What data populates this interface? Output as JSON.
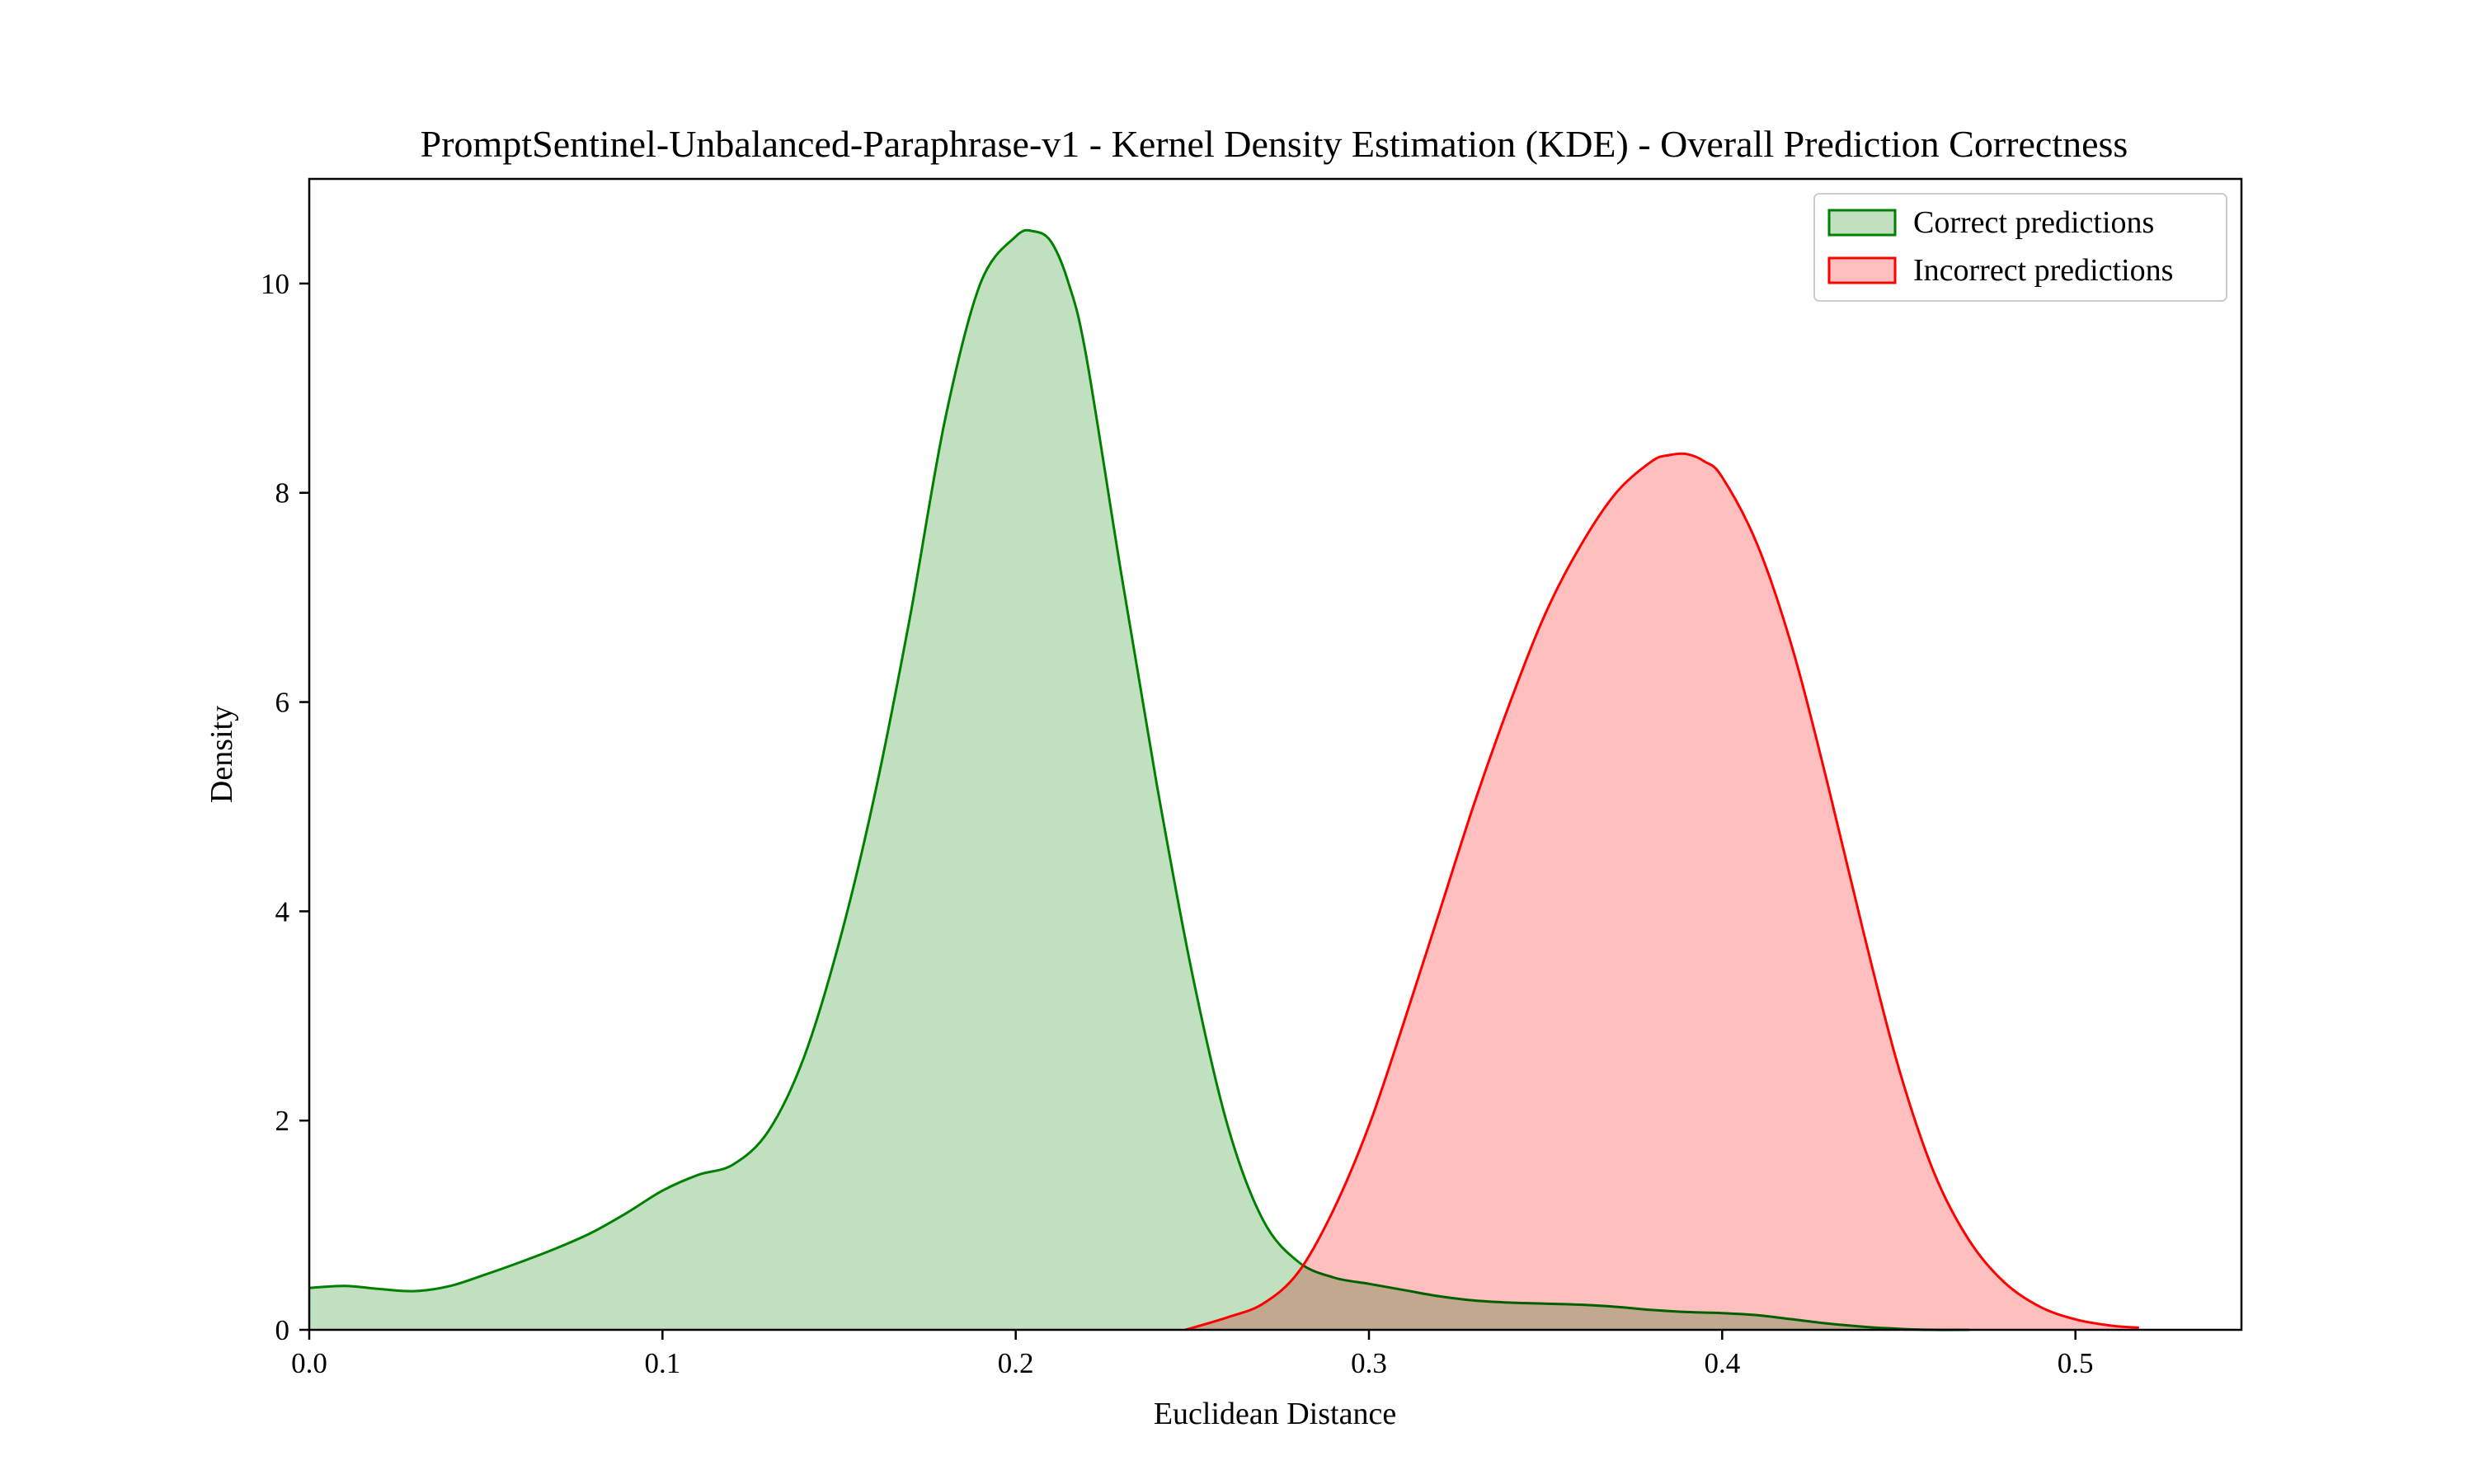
{
  "chart_data": {
    "type": "area",
    "title": "PromptSentinel-Unbalanced-Paraphrase-v1 - Kernel Density Estimation (KDE) - Overall Prediction Correctness",
    "xlabel": "Euclidean Distance",
    "ylabel": "Density",
    "xlim": [
      0.0,
      0.547
    ],
    "ylim": [
      0,
      11.0
    ],
    "xticks": [
      0.0,
      0.1,
      0.2,
      0.3,
      0.4,
      0.5
    ],
    "xtick_labels": [
      "0.0",
      "0.1",
      "0.2",
      "0.3",
      "0.4",
      "0.5"
    ],
    "yticks": [
      0,
      2,
      4,
      6,
      8,
      10
    ],
    "ytick_labels": [
      "0",
      "2",
      "4",
      "6",
      "8",
      "10"
    ],
    "grid": false,
    "legend_position": "top-right",
    "series": [
      {
        "name": "Correct predictions",
        "line_color": "#008000",
        "fill_color": "#c1e0bf",
        "x": [
          0.0,
          0.01,
          0.02,
          0.03,
          0.04,
          0.05,
          0.06,
          0.07,
          0.08,
          0.09,
          0.1,
          0.11,
          0.12,
          0.13,
          0.14,
          0.15,
          0.16,
          0.17,
          0.18,
          0.19,
          0.2,
          0.205,
          0.21,
          0.215,
          0.22,
          0.23,
          0.24,
          0.25,
          0.26,
          0.27,
          0.28,
          0.29,
          0.3,
          0.31,
          0.32,
          0.33,
          0.34,
          0.35,
          0.36,
          0.37,
          0.38,
          0.39,
          0.4,
          0.41,
          0.42,
          0.43,
          0.44,
          0.45,
          0.46,
          0.47
        ],
        "y": [
          0.4,
          0.42,
          0.39,
          0.37,
          0.42,
          0.53,
          0.65,
          0.78,
          0.93,
          1.12,
          1.33,
          1.48,
          1.58,
          1.9,
          2.6,
          3.7,
          5.1,
          6.8,
          8.7,
          10.0,
          10.45,
          10.5,
          10.4,
          10.0,
          9.3,
          7.2,
          5.2,
          3.4,
          1.95,
          1.05,
          0.65,
          0.5,
          0.44,
          0.38,
          0.32,
          0.28,
          0.26,
          0.25,
          0.24,
          0.22,
          0.19,
          0.17,
          0.16,
          0.14,
          0.1,
          0.06,
          0.03,
          0.01,
          0.0,
          0.0
        ]
      },
      {
        "name": "Incorrect predictions",
        "line_color": "#ff0000",
        "fill_color": "#ffbfbf",
        "x": [
          0.248,
          0.26,
          0.27,
          0.28,
          0.29,
          0.3,
          0.31,
          0.32,
          0.33,
          0.34,
          0.35,
          0.36,
          0.37,
          0.38,
          0.385,
          0.39,
          0.395,
          0.4,
          0.41,
          0.42,
          0.43,
          0.44,
          0.45,
          0.46,
          0.47,
          0.48,
          0.49,
          0.5,
          0.51,
          0.518
        ],
        "y": [
          0.0,
          0.12,
          0.25,
          0.55,
          1.15,
          1.95,
          2.95,
          4.0,
          5.05,
          6.0,
          6.85,
          7.5,
          8.0,
          8.3,
          8.36,
          8.37,
          8.3,
          8.15,
          7.5,
          6.5,
          5.2,
          3.8,
          2.5,
          1.5,
          0.85,
          0.45,
          0.22,
          0.1,
          0.04,
          0.02
        ]
      }
    ]
  }
}
